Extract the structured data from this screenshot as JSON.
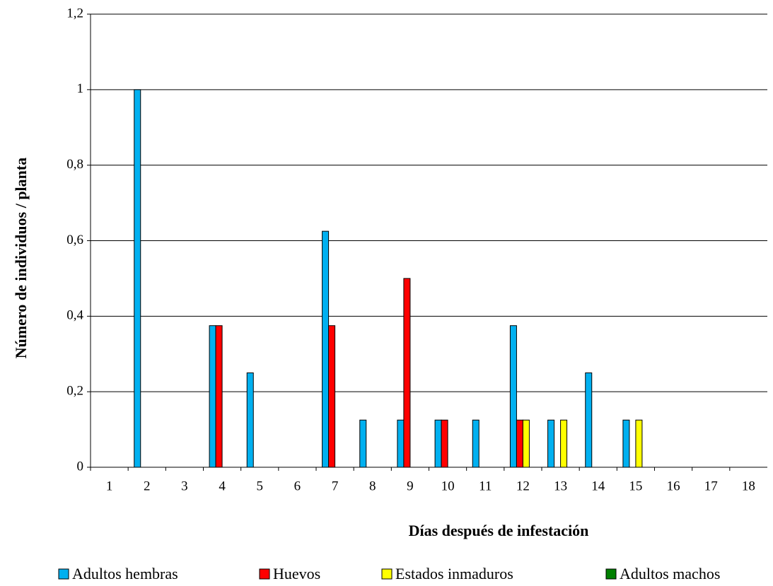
{
  "chart_data": {
    "type": "bar",
    "x_label": "Días después de infestación",
    "y_label": "Número de  individuos / planta",
    "categories": [
      "1",
      "2",
      "3",
      "4",
      "5",
      "6",
      "7",
      "8",
      "9",
      "10",
      "11",
      "12",
      "13",
      "14",
      "15",
      "16",
      "17",
      "18"
    ],
    "series": [
      {
        "name": "Adultos hembras",
        "color": "#00b0f0",
        "values": [
          0,
          1,
          0,
          0.375,
          0.25,
          0,
          0.625,
          0.125,
          0.125,
          0.125,
          0.125,
          0.375,
          0.125,
          0.25,
          0.125,
          0,
          0,
          0
        ]
      },
      {
        "name": "Huevos",
        "color": "#ff0000",
        "values": [
          0,
          0,
          0,
          0.375,
          0,
          0,
          0.375,
          0,
          0.5,
          0.125,
          0,
          0.125,
          0,
          0,
          0,
          0,
          0,
          0
        ]
      },
      {
        "name": "Estados inmaduros",
        "color": "#ffff00",
        "values": [
          0,
          0,
          0,
          0,
          0,
          0,
          0,
          0,
          0,
          0,
          0,
          0.125,
          0.125,
          0,
          0.125,
          0,
          0,
          0
        ]
      },
      {
        "name": "Adultos machos",
        "color": "#008000",
        "values": [
          0,
          0,
          0,
          0,
          0,
          0,
          0,
          0,
          0,
          0,
          0,
          0,
          0,
          0,
          0,
          0,
          0,
          0
        ]
      }
    ],
    "ylim": [
      0,
      1.2
    ],
    "yticks": [
      0,
      {
        "value": 0.2,
        "label": "0,2"
      },
      {
        "value": 0.4,
        "label": "0,4"
      },
      {
        "value": 0.6,
        "label": "0,6"
      },
      {
        "value": 0.8,
        "label": "0,8"
      },
      1,
      {
        "value": 1.2,
        "label": "1,2"
      }
    ],
    "grid": true,
    "legend": "bottom"
  }
}
